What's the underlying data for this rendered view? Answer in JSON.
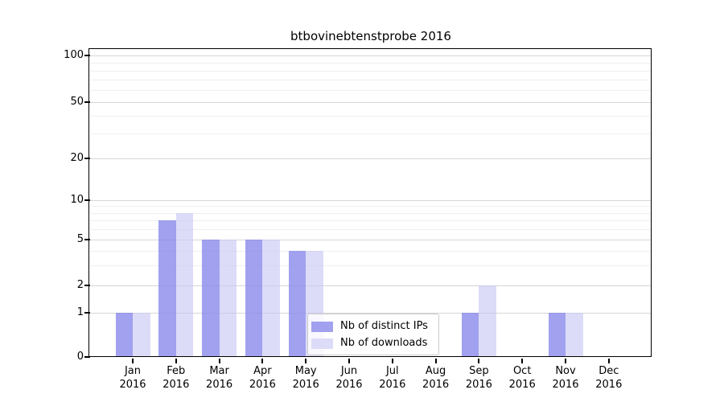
{
  "chart_data": {
    "type": "bar",
    "title": "btbovinebtenstprobe 2016",
    "categories": [
      "Jan",
      "Feb",
      "Mar",
      "Apr",
      "May",
      "Jun",
      "Jul",
      "Aug",
      "Sep",
      "Oct",
      "Nov",
      "Dec"
    ],
    "category_year": "2016",
    "series": [
      {
        "name": "Nb of distinct IPs",
        "color": "#a1a1ef",
        "values": [
          1,
          7,
          5,
          5,
          4,
          0,
          0,
          0,
          1,
          0,
          1,
          0
        ]
      },
      {
        "name": "Nb of downloads",
        "color": "#dcdcf8",
        "values": [
          1,
          8,
          5,
          5,
          4,
          0,
          0,
          0,
          2,
          0,
          1,
          0
        ]
      }
    ],
    "yscale": "log",
    "ylim": [
      0,
      100
    ],
    "y_ticks": [
      0,
      1,
      2,
      5,
      10,
      20,
      50,
      100
    ],
    "y_minor_ticks": [
      3,
      4,
      6,
      7,
      8,
      9,
      30,
      40,
      60,
      70,
      80,
      90
    ],
    "grid": "horizontal",
    "legend_position": "lower center"
  }
}
